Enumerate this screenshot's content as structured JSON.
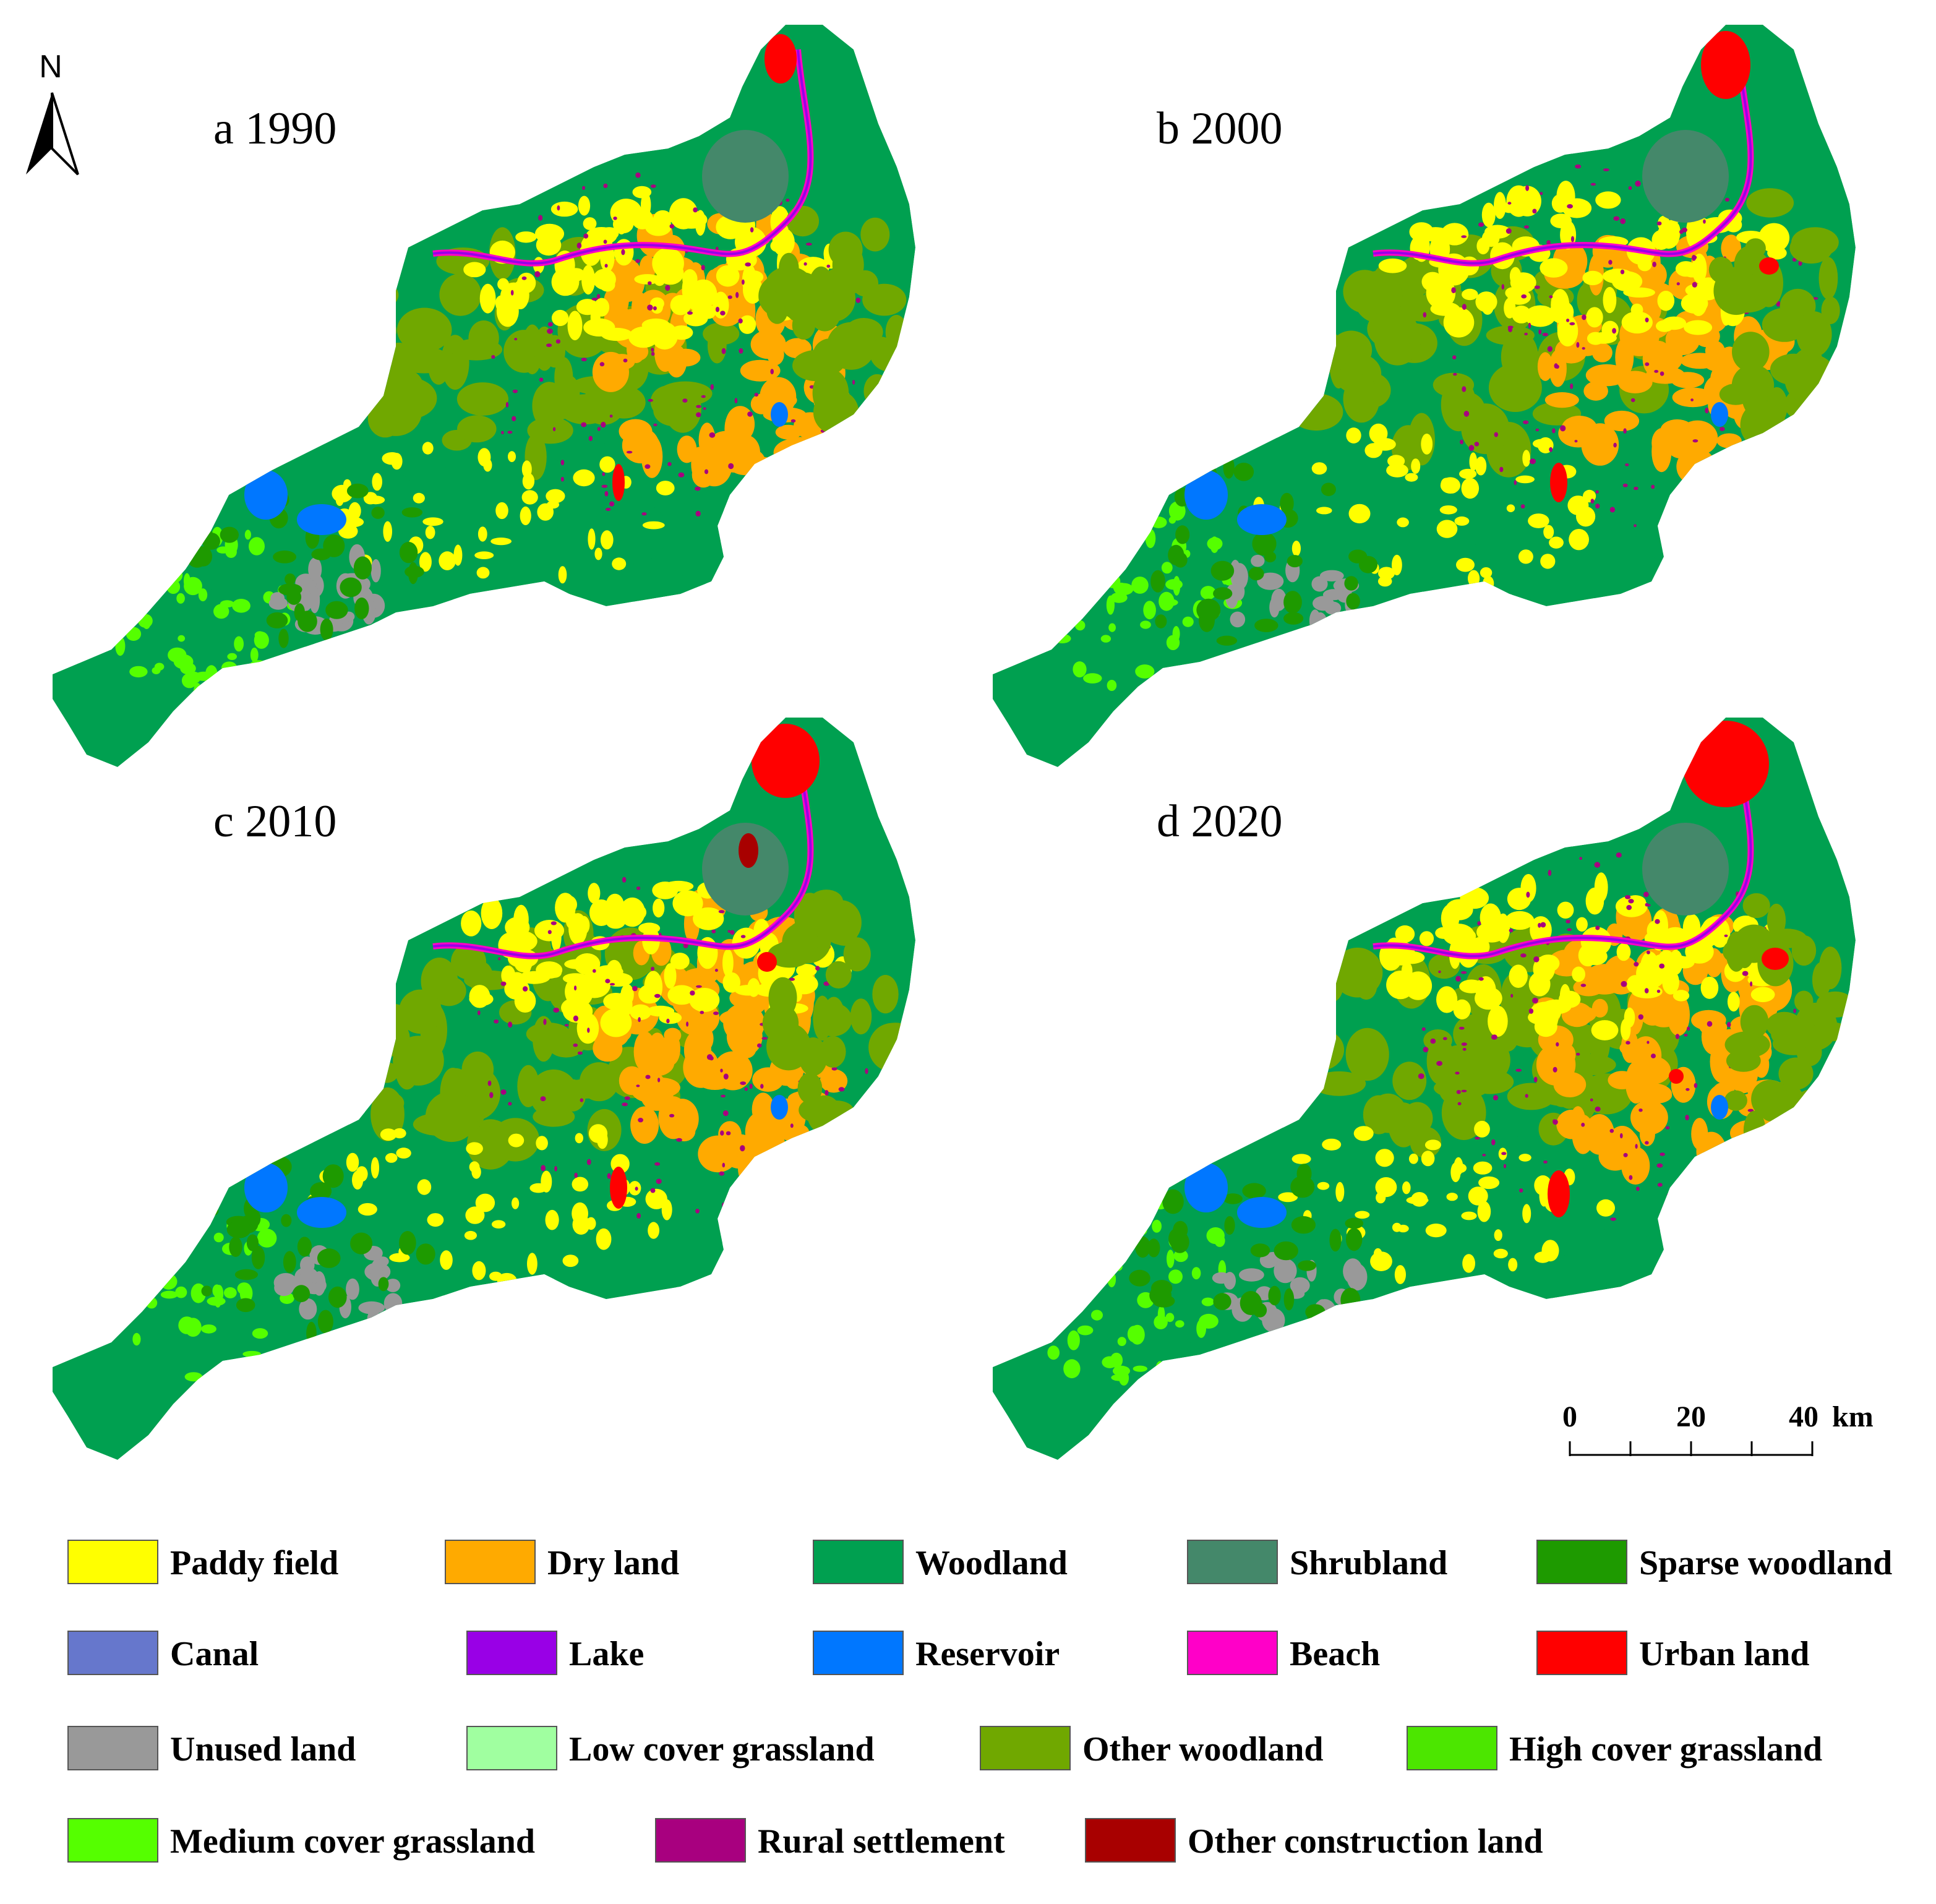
{
  "north_arrow": {
    "label": "N",
    "icon": "north-arrow-icon"
  },
  "panels": [
    {
      "id": "a",
      "label": "a 1990"
    },
    {
      "id": "b",
      "label": "b 2000"
    },
    {
      "id": "c",
      "label": "c 2010"
    },
    {
      "id": "d",
      "label": "d 2020"
    }
  ],
  "scale_bar": {
    "ticks": [
      "0",
      "20",
      "40"
    ],
    "unit": "km"
  },
  "legend": [
    {
      "label": "Paddy field",
      "color": "#FFFF00"
    },
    {
      "label": "Dry land",
      "color": "#FFAA00"
    },
    {
      "label": "Woodland",
      "color": "#00A050"
    },
    {
      "label": "Shrubland",
      "color": "#44886A"
    },
    {
      "label": "Sparse woodland",
      "color": "#1E9A00"
    },
    {
      "label": "Canal",
      "color": "#6677CC"
    },
    {
      "label": "Lake",
      "color": "#9900E6"
    },
    {
      "label": "Reservoir",
      "color": "#0077FF"
    },
    {
      "label": "Beach",
      "color": "#FF00C8"
    },
    {
      "label": "Urban land",
      "color": "#FF0000"
    },
    {
      "label": "Unused land",
      "color": "#999999"
    },
    {
      "label": "Low cover grassland",
      "color": "#A0FFA0"
    },
    {
      "label": "Other woodland",
      "color": "#70A800"
    },
    {
      "label": "High cover grassland",
      "color": "#4CE600"
    },
    {
      "label": "Medium cover grassland",
      "color": "#55FF00"
    },
    {
      "label": "Rural settlement",
      "color": "#A8007F"
    },
    {
      "label": "Other construction land",
      "color": "#A80000"
    }
  ]
}
